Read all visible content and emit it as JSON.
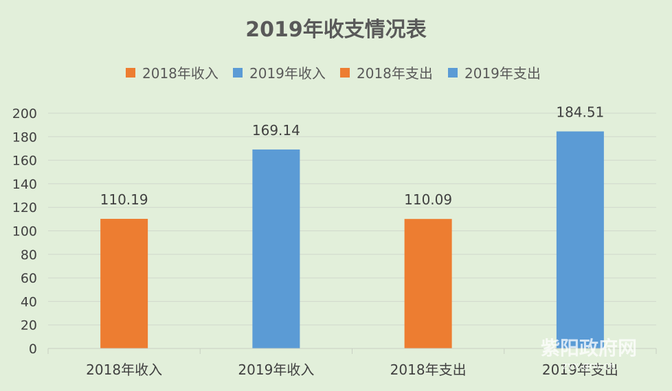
{
  "chart_data": {
    "type": "bar",
    "title": "2019年收支情况表",
    "categories": [
      "2018年收入",
      "2019年收入",
      "2018年支出",
      "2019年支出"
    ],
    "values": [
      110.19,
      169.14,
      110.09,
      184.51
    ],
    "bar_colors": [
      "#ed7d31",
      "#5b9bd5",
      "#ed7d31",
      "#5b9bd5"
    ],
    "legend": [
      {
        "label": "2018年收入",
        "color": "#ed7d31"
      },
      {
        "label": "2019年收入",
        "color": "#5b9bd5"
      },
      {
        "label": "2018年支出",
        "color": "#ed7d31"
      },
      {
        "label": "2019年支出",
        "color": "#5b9bd5"
      }
    ],
    "legend_position": "top",
    "ylim": [
      0,
      200
    ],
    "yticks": [
      0,
      20,
      40,
      60,
      80,
      100,
      120,
      140,
      160,
      180,
      200
    ],
    "grid": true,
    "xlabel": "",
    "ylabel": ""
  },
  "watermark": {
    "text": "紫阳政府网",
    "subtext": "zyx.gov.cn"
  }
}
